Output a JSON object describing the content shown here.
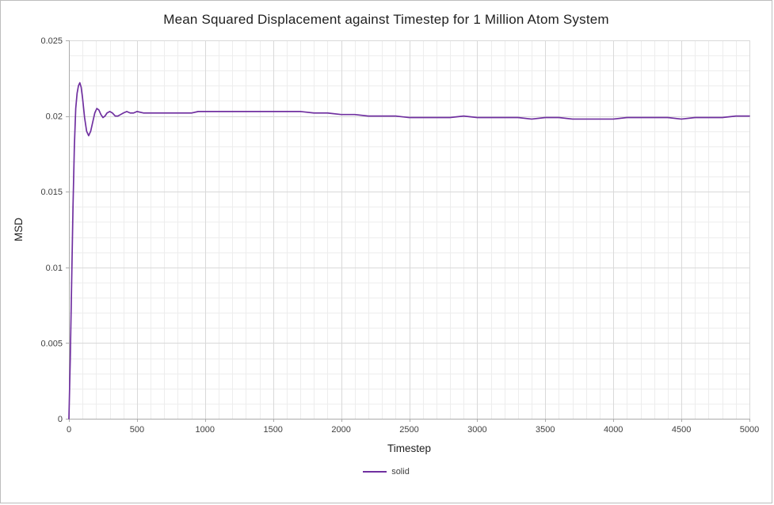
{
  "chart_data": {
    "type": "line",
    "title": "Mean Squared Displacement against Timestep for 1 Million Atom System",
    "xlabel": "Timestep",
    "ylabel": "MSD",
    "xlim": [
      0,
      5000
    ],
    "ylim": [
      0,
      0.025
    ],
    "x_ticks": [
      0,
      500,
      1000,
      1500,
      2000,
      2500,
      3000,
      3500,
      4000,
      4500,
      5000
    ],
    "x_tick_labels": [
      "0",
      "500",
      "1000",
      "1500",
      "2000",
      "2500",
      "3000",
      "3500",
      "4000",
      "4500",
      "5000"
    ],
    "y_ticks": [
      0,
      0.005,
      0.01,
      0.015,
      0.02,
      0.025
    ],
    "y_tick_labels": [
      "0",
      "0.005",
      "0.01",
      "0.015",
      "0.02",
      "0.025"
    ],
    "x_minor_step": 100,
    "y_minor_step": 0.001,
    "grid": true,
    "legend_position": "bottom",
    "colors": {
      "line": "#7030A0",
      "grid_major": "#D9D9D9",
      "grid_minor": "#EDEDED",
      "axis": "#ABABAB",
      "tick_text": "#404040",
      "title_text": "#1f1f1f"
    },
    "series": [
      {
        "name": "solid",
        "color": "#7030A0",
        "x": [
          0,
          10,
          20,
          30,
          40,
          50,
          60,
          70,
          80,
          90,
          100,
          115,
          130,
          145,
          160,
          175,
          190,
          205,
          220,
          235,
          250,
          265,
          280,
          300,
          320,
          340,
          360,
          380,
          400,
          425,
          450,
          475,
          500,
          550,
          600,
          650,
          700,
          750,
          800,
          850,
          900,
          950,
          1000,
          1100,
          1200,
          1300,
          1400,
          1500,
          1600,
          1700,
          1800,
          1900,
          2000,
          2100,
          2200,
          2300,
          2400,
          2500,
          2600,
          2700,
          2800,
          2900,
          3000,
          3100,
          3200,
          3300,
          3400,
          3500,
          3600,
          3700,
          3800,
          3900,
          4000,
          4100,
          4200,
          4300,
          4400,
          4500,
          4600,
          4700,
          4800,
          4900,
          5000
        ],
        "y": [
          0,
          0.004,
          0.009,
          0.014,
          0.018,
          0.0205,
          0.0215,
          0.022,
          0.0222,
          0.0219,
          0.0212,
          0.0199,
          0.019,
          0.0187,
          0.019,
          0.0196,
          0.0202,
          0.0205,
          0.0204,
          0.0201,
          0.0199,
          0.02,
          0.0202,
          0.0203,
          0.0202,
          0.02,
          0.02,
          0.0201,
          0.0202,
          0.0203,
          0.0202,
          0.0202,
          0.0203,
          0.0202,
          0.0202,
          0.0202,
          0.0202,
          0.0202,
          0.0202,
          0.0202,
          0.0202,
          0.0203,
          0.0203,
          0.0203,
          0.0203,
          0.0203,
          0.0203,
          0.0203,
          0.0203,
          0.0203,
          0.0202,
          0.0202,
          0.0201,
          0.0201,
          0.02,
          0.02,
          0.02,
          0.0199,
          0.0199,
          0.0199,
          0.0199,
          0.02,
          0.0199,
          0.0199,
          0.0199,
          0.0199,
          0.0198,
          0.0199,
          0.0199,
          0.0198,
          0.0198,
          0.0198,
          0.0198,
          0.0199,
          0.0199,
          0.0199,
          0.0199,
          0.0198,
          0.0199,
          0.0199,
          0.0199,
          0.02,
          0.02
        ]
      }
    ]
  }
}
